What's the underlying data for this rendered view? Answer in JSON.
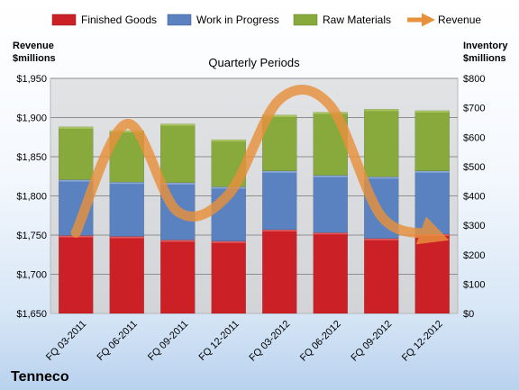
{
  "chart_data": {
    "type": "bar",
    "subtitle": "Quarterly Periods",
    "company": "Tenneco",
    "categories": [
      "FQ 03-2011",
      "FQ 06-2011",
      "FQ 09-2011",
      "FQ 12-2011",
      "FQ 03-2012",
      "FQ 06-2012",
      "FQ 09-2012",
      "FQ 12-2012"
    ],
    "stacked": true,
    "left_axis": {
      "label_line1": "Revenue",
      "label_line2": "$millions",
      "range": [
        1650,
        1950
      ],
      "ticks": [
        "$1,650",
        "$1,700",
        "$1,750",
        "$1,800",
        "$1,850",
        "$1,900",
        "$1,950"
      ],
      "tick_values": [
        1650,
        1700,
        1750,
        1800,
        1850,
        1900,
        1950
      ]
    },
    "right_axis": {
      "label_line1": "Inventory",
      "label_line2": "$millions",
      "range": [
        0,
        800
      ],
      "ticks": [
        "$0",
        "$100",
        "$200",
        "$300",
        "$400",
        "$500",
        "$600",
        "$700",
        "$800"
      ],
      "tick_values": [
        0,
        100,
        200,
        300,
        400,
        500,
        600,
        700,
        800
      ]
    },
    "series": [
      {
        "name": "Finished Goods",
        "kind": "bar",
        "axis": "right",
        "color": "#cc2027",
        "values": [
          265,
          262,
          250,
          246,
          285,
          275,
          255,
          270
        ]
      },
      {
        "name": "Work in Progress",
        "kind": "bar",
        "axis": "right",
        "color": "#5b82c0",
        "values": [
          190,
          185,
          195,
          185,
          200,
          195,
          210,
          215
        ]
      },
      {
        "name": "Raw Materials",
        "kind": "bar",
        "axis": "right",
        "color": "#88aa3c",
        "values": [
          180,
          175,
          200,
          160,
          190,
          215,
          230,
          205
        ]
      },
      {
        "name": "Revenue",
        "kind": "line",
        "axis": "left",
        "color": "#e8913c",
        "values": [
          1753,
          1892,
          1780,
          1802,
          1923,
          1915,
          1774,
          1751
        ]
      }
    ],
    "legend_position": "top",
    "grid": true
  }
}
